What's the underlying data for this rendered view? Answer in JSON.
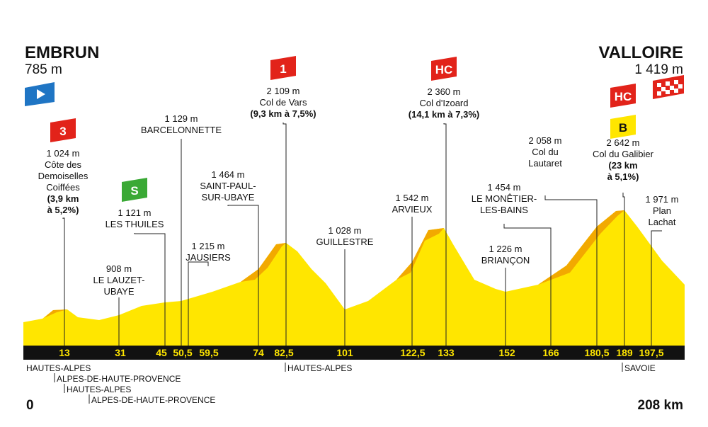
{
  "start": {
    "name": "EMBRUN",
    "altitude": "785 m",
    "km": "0"
  },
  "finish": {
    "name": "VALLOIRE",
    "altitude": "1 419 m",
    "km": "208 km"
  },
  "km_marks": [
    "13",
    "31",
    "45",
    "50,5",
    "59,5",
    "74",
    "82,5",
    "101",
    "122,5",
    "133",
    "152",
    "166",
    "180,5",
    "189",
    "197,5"
  ],
  "points": [
    {
      "category": "3",
      "lines": [
        "1 024 m",
        "Côte des",
        "Demoiselles",
        "Coiffées"
      ],
      "bold": [
        "(3,9 km",
        "à 5,2%)"
      ]
    },
    {
      "lines": [
        "908 m",
        "LE LAUZET-",
        "UBAYE"
      ]
    },
    {
      "category": "S",
      "lines": [
        "1 121 m",
        "LES THUILES"
      ]
    },
    {
      "lines": [
        "1 129 m",
        "BARCELONNETTE"
      ]
    },
    {
      "lines": [
        "1 215 m",
        "JAUSIERS"
      ]
    },
    {
      "lines": [
        "1 464 m",
        "SAINT-PAUL-",
        "SUR-UBAYE"
      ]
    },
    {
      "category": "1",
      "lines": [
        "2 109 m",
        "Col de Vars"
      ],
      "bold": [
        "(9,3 km à 7,5%)"
      ]
    },
    {
      "lines": [
        "1 028 m",
        "GUILLESTRE"
      ]
    },
    {
      "lines": [
        "1 542 m",
        "ARVIEUX"
      ]
    },
    {
      "category": "HC",
      "lines": [
        "2 360 m",
        "Col d'Izoard"
      ],
      "bold": [
        "(14,1 km à 7,3%)"
      ]
    },
    {
      "lines": [
        "1 226 m",
        "BRIANÇON"
      ]
    },
    {
      "lines": [
        "1 454 m",
        "LE MONÊTIER-",
        "LES-BAINS"
      ]
    },
    {
      "lines": [
        "2 058 m",
        "Col du",
        "Lautaret"
      ]
    },
    {
      "category": "HC",
      "bonus": "B",
      "lines": [
        "2 642 m",
        "Col du Galibier"
      ],
      "bold": [
        "(23 km",
        "à 5,1%)"
      ]
    },
    {
      "lines": [
        "1 971 m",
        "Plan",
        "Lachat"
      ]
    }
  ],
  "regions": [
    "HAUTES-ALPES",
    "ALPES-DE-HAUTE-PROVENCE",
    "HAUTES-ALPES",
    "ALPES-DE-HAUTE-PROVENCE",
    "HAUTES-ALPES",
    "SAVOIE"
  ]
}
